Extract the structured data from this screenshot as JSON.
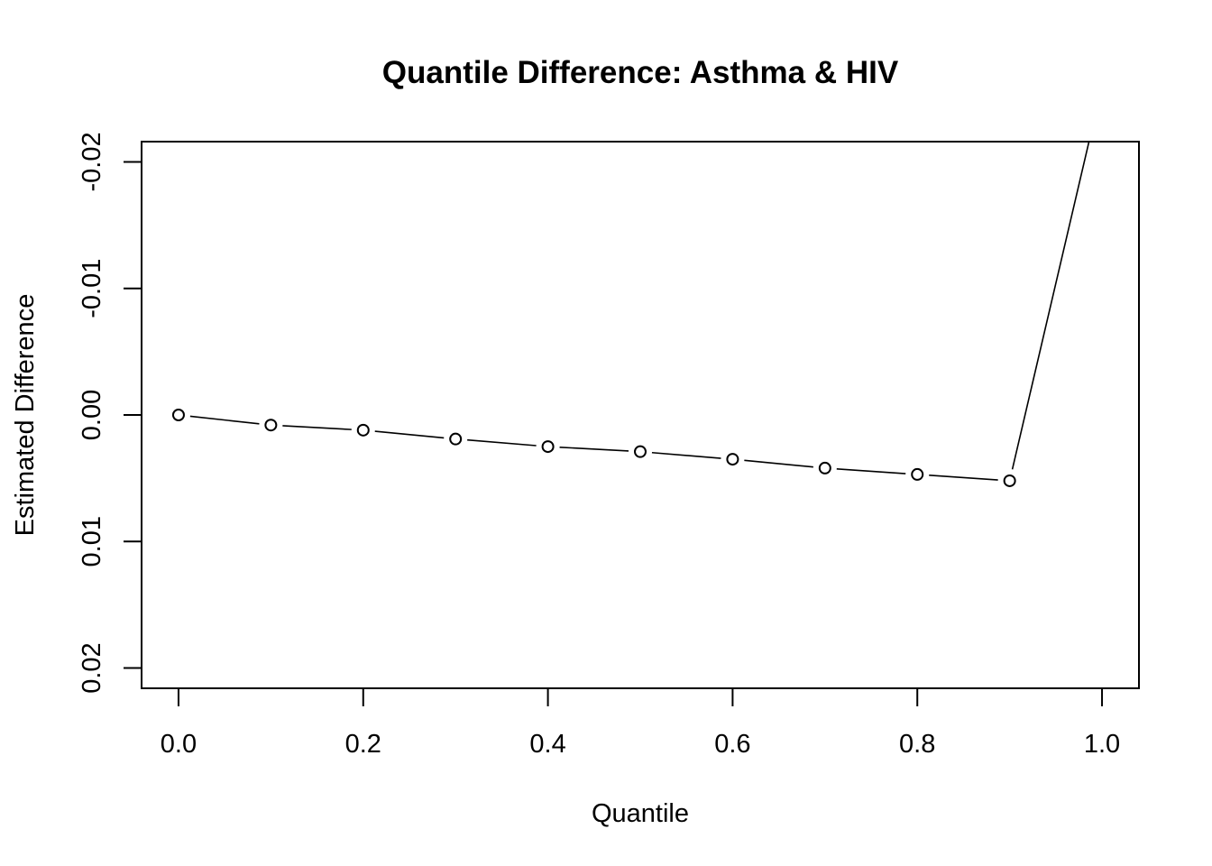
{
  "chart_data": {
    "type": "line",
    "title": "Quantile Difference: Asthma & HIV",
    "xlabel": "Quantile",
    "ylabel": "Estimated Difference",
    "xlim": [
      -0.04,
      1.04
    ],
    "ylim": [
      0.0216,
      -0.0216
    ],
    "x_ticks": [
      0.0,
      0.2,
      0.4,
      0.6,
      0.8,
      1.0
    ],
    "x_tick_labels": [
      "0.0",
      "0.2",
      "0.4",
      "0.6",
      "0.8",
      "1.0"
    ],
    "y_ticks": [
      -0.02,
      -0.01,
      0.0,
      0.01,
      0.02
    ],
    "y_tick_labels": [
      "-0.02",
      "-0.01",
      "0.00",
      "0.01",
      "0.02"
    ],
    "y_axis_inverted": true,
    "grid": false,
    "legend": "none",
    "series": [
      {
        "x": [
          0.0,
          0.1,
          0.2,
          0.3,
          0.4,
          0.5,
          0.6,
          0.7,
          0.8,
          0.9,
          1.0
        ],
        "y": [
          0.0,
          0.0008,
          0.0012,
          0.0019,
          0.0025,
          0.0029,
          0.0035,
          0.0042,
          0.0047,
          0.0052,
          -0.026
        ],
        "markers": [
          true,
          true,
          true,
          true,
          true,
          true,
          true,
          true,
          true,
          true,
          false
        ]
      }
    ]
  }
}
